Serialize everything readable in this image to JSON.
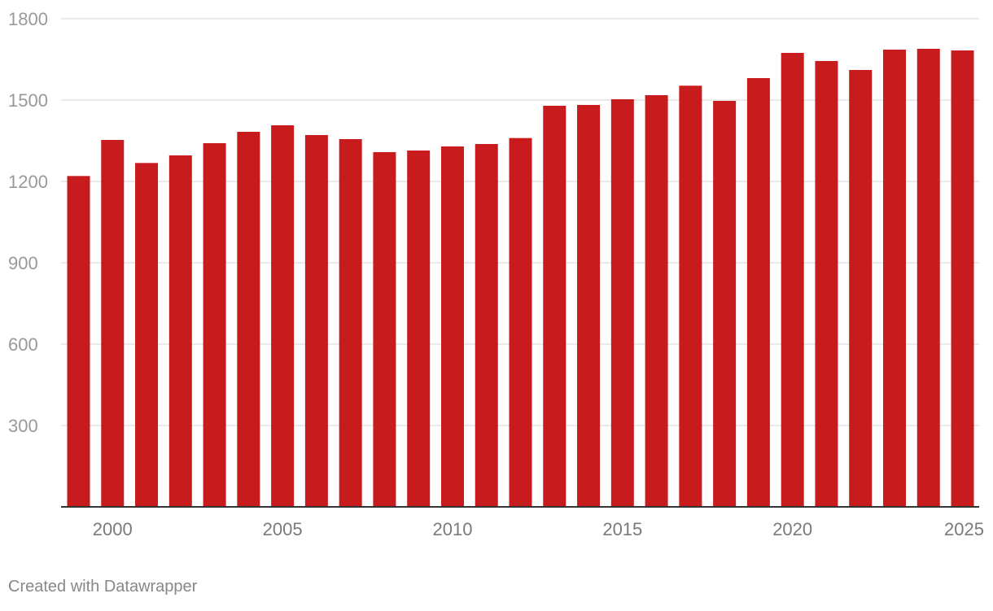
{
  "chart_data": {
    "type": "bar",
    "title": "",
    "xlabel": "",
    "ylabel": "",
    "categories": [
      "1999",
      "2000",
      "2001",
      "2002",
      "2003",
      "2004",
      "2005",
      "2006",
      "2007",
      "2008",
      "2009",
      "2010",
      "2011",
      "2012",
      "2013",
      "2014",
      "2015",
      "2016",
      "2017",
      "2018",
      "2019",
      "2020",
      "2021",
      "2022",
      "2023",
      "2024",
      "2025"
    ],
    "values": [
      1220,
      1353,
      1268,
      1296,
      1341,
      1383,
      1407,
      1371,
      1356,
      1308,
      1314,
      1329,
      1338,
      1360,
      1479,
      1482,
      1503,
      1518,
      1553,
      1497,
      1581,
      1674,
      1644,
      1611,
      1686,
      1689,
      1683
    ],
    "ylim": [
      0,
      1800
    ],
    "yticks": [
      300,
      600,
      900,
      1200,
      1500,
      1800
    ],
    "xtick_labels": [
      "2000",
      "2005",
      "2010",
      "2015",
      "2020",
      "2025"
    ],
    "grid": true,
    "bar_color": "#c71b1e",
    "grid_color": "#e3e3e3",
    "axis_color": "#333333"
  },
  "footer": {
    "credit": "Created with Datawrapper"
  }
}
